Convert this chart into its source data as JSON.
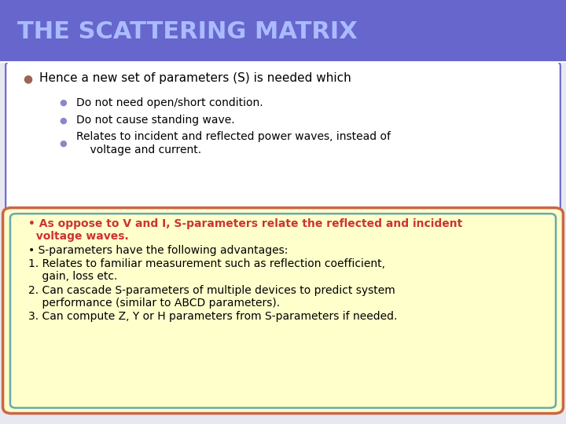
{
  "title": "THE SCATTERING MATRIX",
  "title_bg": "#6666cc",
  "title_color": "#aabbff",
  "slide_bg": "#e8e8f0",
  "bullet1_text": "Hence a new set of parameters (S) is needed which",
  "sub_bullets": [
    "Do not need open/short condition.",
    "Do not cause standing wave.",
    "Relates to incident and reflected power waves, instead of\n    voltage and current."
  ],
  "box_bg": "#ffffcc",
  "box_border": "#cc6644",
  "box_border2": "#66aaaa",
  "box_line1_red": "• As oppose to V and I, S-parameters relate the reflected and incident",
  "box_line2_red": "  voltage waves.",
  "box_lines_black": [
    "• S-parameters have the following advantages:",
    "1. Relates to familiar measurement such as reflection coefficient,",
    "    gain, loss etc.",
    "2. Can cascade S-parameters of multiple devices to predict system",
    "    performance (similar to ABCD parameters).",
    "3. Can compute Z, Y or H parameters from S-parameters if needed."
  ]
}
